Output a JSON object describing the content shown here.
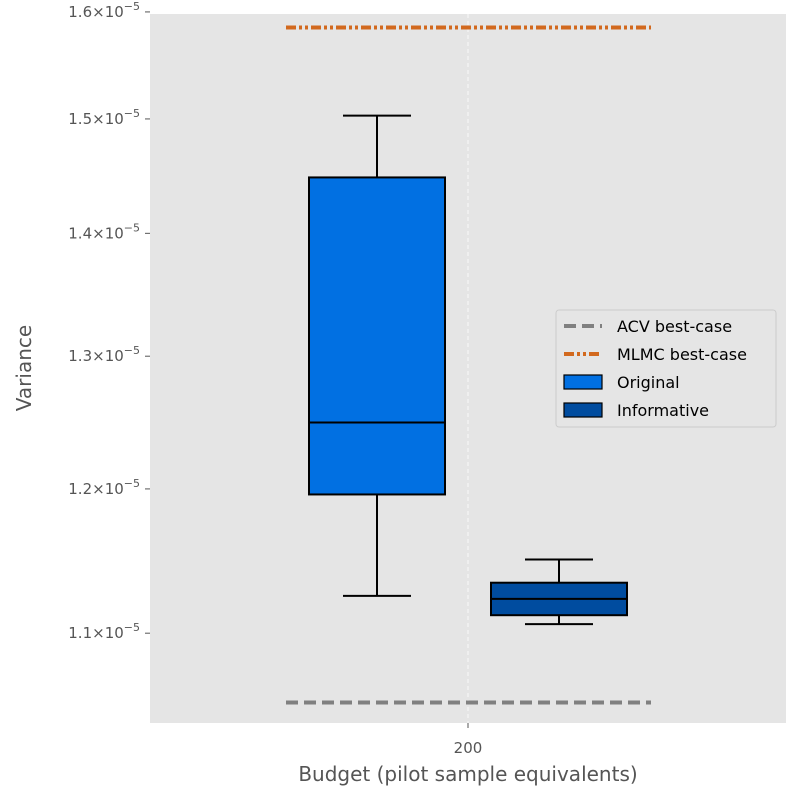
{
  "chart_data": {
    "type": "box",
    "xlabel": "Budget (pilot sample equivalents)",
    "ylabel": "Variance",
    "x_categories": [
      "200"
    ],
    "y_scale": "log",
    "ylim": [
      1.042e-05,
      1.598e-05
    ],
    "y_ticks": [
      {
        "value": 1.1e-05,
        "mantissa": "1.1",
        "exponent": "−5"
      },
      {
        "value": 1.2e-05,
        "mantissa": "1.2",
        "exponent": "−5"
      },
      {
        "value": 1.3e-05,
        "mantissa": "1.3",
        "exponent": "−5"
      },
      {
        "value": 1.4e-05,
        "mantissa": "1.4",
        "exponent": "−5"
      },
      {
        "value": 1.5e-05,
        "mantissa": "1.5",
        "exponent": "−5"
      },
      {
        "value": 1.6e-05,
        "mantissa": "1.6",
        "exponent": "−5"
      }
    ],
    "grid": true,
    "legend_placement": "center-right",
    "series": [
      {
        "name": "Original",
        "kind": "box",
        "color": "#0170e2",
        "whisker_low": 1.125e-05,
        "q1": 1.196e-05,
        "median": 1.249e-05,
        "q3": 1.448e-05,
        "whisker_high": 1.503e-05
      },
      {
        "name": "Informative",
        "kind": "box",
        "color": "#004c9f",
        "whisker_low": 1.106e-05,
        "q1": 1.112e-05,
        "median": 1.123e-05,
        "q3": 1.134e-05,
        "whisker_high": 1.15e-05
      }
    ],
    "reference_lines": [
      {
        "name": "ACV best-case",
        "value": 1.055e-05,
        "color": "#808080",
        "dash": "dashed"
      },
      {
        "name": "MLMC best-case",
        "value": 1.585e-05,
        "color": "#d2691e",
        "dash": "dashdotdot"
      }
    ],
    "legend": [
      {
        "label": "ACV best-case",
        "type": "line",
        "color": "#808080",
        "dash": "dashed"
      },
      {
        "label": "MLMC best-case",
        "type": "line",
        "color": "#d2691e",
        "dash": "dashdotdot"
      },
      {
        "label": "Original",
        "type": "patch",
        "color": "#0170e2"
      },
      {
        "label": "Informative",
        "type": "patch",
        "color": "#004c9f"
      }
    ]
  }
}
